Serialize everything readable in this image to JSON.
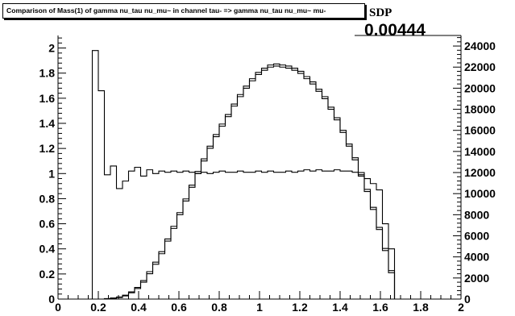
{
  "title": "Comparison of Mass(1) of gamma nu_tau nu_mu~ in channel tau- => gamma nu_tau nu_mu~ mu-",
  "sdp": {
    "label": "SDP",
    "value": "0.00444"
  },
  "chart_data": {
    "type": "line",
    "xlim": [
      0,
      2
    ],
    "ylim_left": [
      0,
      2.1
    ],
    "ylim_right": [
      0,
      25000
    ],
    "x_ticks": [
      "0",
      "0.2",
      "0.4",
      "0.6",
      "0.8",
      "1",
      "1.2",
      "1.4",
      "1.6",
      "1.8",
      "2"
    ],
    "y_left_ticks": [
      "0",
      "0.2",
      "0.4",
      "0.6",
      "0.8",
      "1",
      "1.2",
      "1.4",
      "1.6",
      "1.8",
      "2"
    ],
    "y_right_ticks": [
      "0",
      "2000",
      "4000",
      "6000",
      "8000",
      "10000",
      "12000",
      "14000",
      "16000",
      "18000",
      "20000",
      "22000",
      "24000"
    ],
    "grid": false,
    "bin_edges": [
      0.17,
      0.2,
      0.23,
      0.26,
      0.29,
      0.32,
      0.35,
      0.38,
      0.41,
      0.44,
      0.47,
      0.5,
      0.53,
      0.56,
      0.59,
      0.62,
      0.65,
      0.68,
      0.71,
      0.74,
      0.77,
      0.8,
      0.83,
      0.86,
      0.89,
      0.92,
      0.95,
      0.98,
      1.01,
      1.04,
      1.07,
      1.1,
      1.13,
      1.16,
      1.19,
      1.22,
      1.25,
      1.28,
      1.31,
      1.34,
      1.37,
      1.4,
      1.43,
      1.46,
      1.49,
      1.52,
      1.55,
      1.58,
      1.61,
      1.64,
      1.67,
      1.7
    ],
    "series": [
      {
        "axis": "right",
        "values": [
          0,
          0,
          30,
          80,
          150,
          300,
          600,
          1000,
          1600,
          2400,
          3300,
          4300,
          5500,
          6700,
          8000,
          9300,
          10600,
          11900,
          13100,
          14300,
          15400,
          16400,
          17300,
          18300,
          19200,
          20000,
          20700,
          21300,
          21700,
          22000,
          22100,
          22000,
          21900,
          21700,
          21400,
          20900,
          20400,
          19700,
          19000,
          18000,
          17000,
          15800,
          14500,
          13200,
          11800,
          10200,
          8500,
          6600,
          4600,
          2500,
          0
        ]
      },
      {
        "axis": "right",
        "values": [
          0,
          0,
          40,
          100,
          200,
          370,
          680,
          1100,
          1750,
          2600,
          3500,
          4500,
          5700,
          6900,
          8200,
          9500,
          10800,
          12100,
          13300,
          14500,
          15600,
          16600,
          17500,
          18500,
          19400,
          20200,
          20900,
          21500,
          21900,
          22200,
          22300,
          22200,
          22100,
          21900,
          21600,
          21100,
          20600,
          19900,
          19200,
          18200,
          17200,
          16000,
          14700,
          13400,
          12000,
          10400,
          8700,
          6800,
          4800,
          2700,
          0
        ]
      },
      {
        "axis": "left",
        "values": [
          1.98,
          1.66,
          0.99,
          1.06,
          0.88,
          0.94,
          1.02,
          1.05,
          0.98,
          1.03,
          1.0,
          1.02,
          1.01,
          1.02,
          1.01,
          1.02,
          1.01,
          1.0,
          1.01,
          1.0,
          1.01,
          1.02,
          1.01,
          1.01,
          1.02,
          1.01,
          1.01,
          1.02,
          1.01,
          1.02,
          1.01,
          1.01,
          1.02,
          1.01,
          1.02,
          1.03,
          1.02,
          1.03,
          1.02,
          1.02,
          1.03,
          1.02,
          1.02,
          1.01,
          0.98,
          0.96,
          0.92,
          0.87,
          0.6,
          0.4,
          0
        ]
      }
    ]
  }
}
